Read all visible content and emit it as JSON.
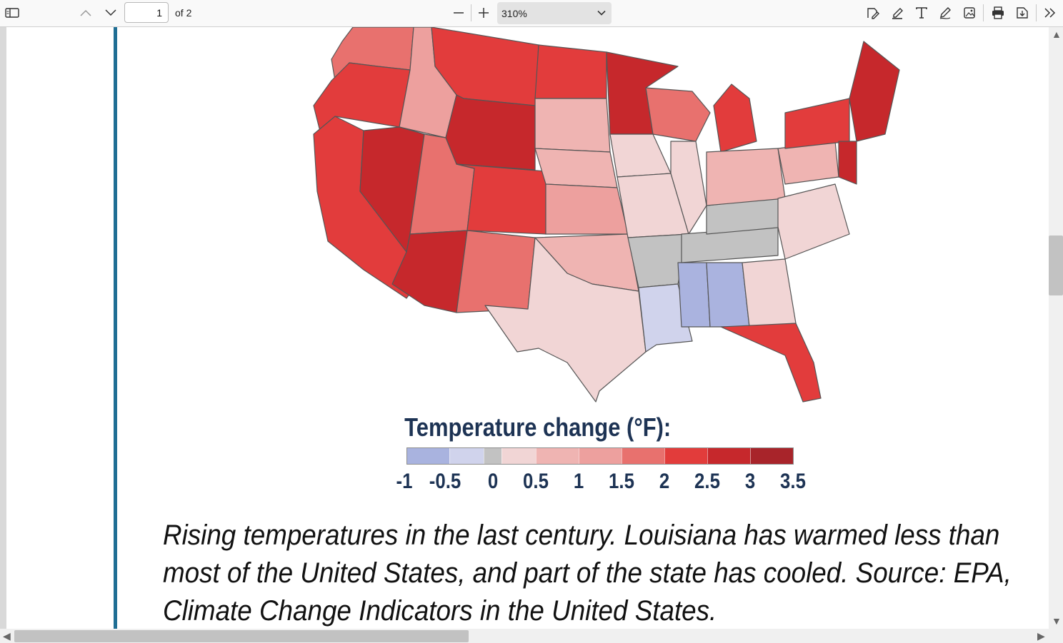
{
  "toolbar": {
    "page_number": "1",
    "page_count": "of 2",
    "zoom": "310%"
  },
  "map": {
    "colors": {
      "strong_warm": "#b3262b",
      "warm": "#e23c3c",
      "mid_warm": "#ec6a66",
      "light_warm": "#f2a4a1",
      "pale_warm": "#f5cfcf",
      "neutral": "#c4c4c4",
      "cool": "#c5cbe9",
      "strong_cool": "#aab3df",
      "outline": "#555555"
    }
  },
  "legend": {
    "title": "Temperature change (°F):",
    "ticks": [
      "-1",
      "-0.5",
      "0",
      "0.5",
      "1",
      "1.5",
      "2",
      "2.5",
      "3",
      "3.5"
    ],
    "colors": [
      "#a9b3df",
      "#d0d3ec",
      "#c2c2c2",
      "#f1d5d5",
      "#efb4b2",
      "#eda09e",
      "#e8716e",
      "#e23c3b",
      "#c6282c",
      "#a8242a"
    ]
  },
  "caption": {
    "line1": "Rising temperatures in the last century. Louisiana has warmed less than",
    "line2": "most of the United States, and part of the state has cooled. Source: EPA,",
    "line3": "Climate Change Indicators in the United States."
  }
}
